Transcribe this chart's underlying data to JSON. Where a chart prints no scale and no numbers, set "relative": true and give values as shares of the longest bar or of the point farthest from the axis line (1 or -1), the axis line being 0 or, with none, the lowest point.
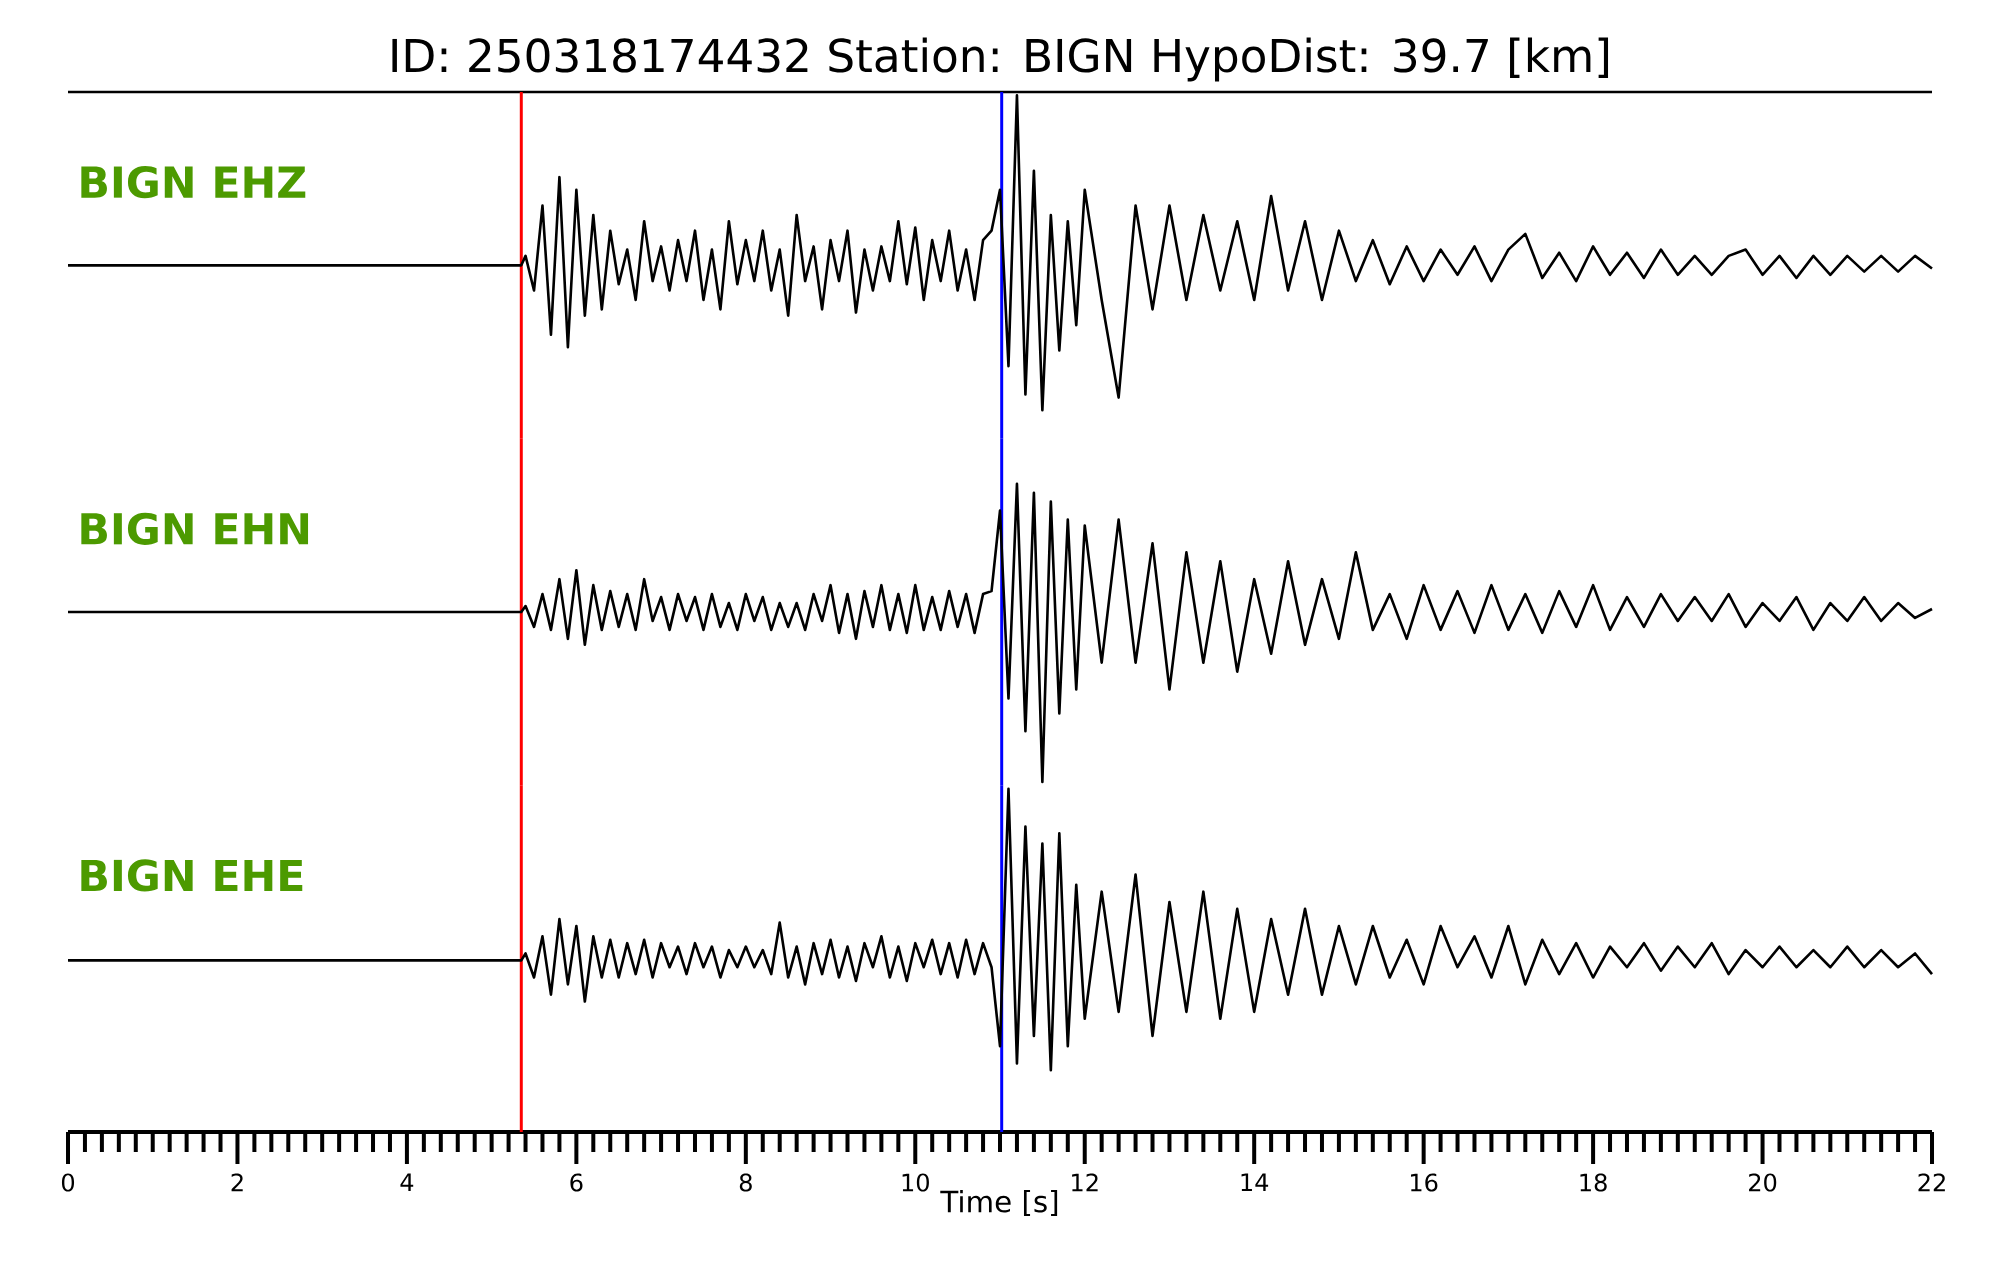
{
  "chart_data": [
    {
      "type": "line",
      "title": "ID: 250318174432   Station: BIGN   HypoDist:    39.7 [km]",
      "relative": true,
      "tick_labels": false,
      "xlim": [
        0,
        22
      ],
      "x": [
        0,
        5.35,
        5.4,
        5.5,
        5.6,
        5.7,
        5.8,
        5.9,
        6.0,
        6.1,
        6.2,
        6.3,
        6.4,
        6.5,
        6.6,
        6.7,
        6.8,
        6.9,
        7.0,
        7.1,
        7.2,
        7.3,
        7.4,
        7.5,
        7.6,
        7.7,
        7.8,
        7.9,
        8.0,
        8.1,
        8.2,
        8.3,
        8.4,
        8.5,
        8.6,
        8.7,
        8.8,
        8.9,
        9.0,
        9.1,
        9.2,
        9.3,
        9.4,
        9.5,
        9.6,
        9.7,
        9.8,
        9.9,
        10.0,
        10.1,
        10.2,
        10.3,
        10.4,
        10.5,
        10.6,
        10.7,
        10.8,
        10.9,
        11.0,
        11.1,
        11.2,
        11.3,
        11.4,
        11.5,
        11.6,
        11.7,
        11.8,
        11.9,
        12.0,
        12.2,
        12.4,
        12.6,
        12.8,
        13.0,
        13.2,
        13.4,
        13.6,
        13.8,
        14.0,
        14.2,
        14.4,
        14.6,
        14.8,
        15.0,
        15.2,
        15.4,
        15.6,
        15.8,
        16.0,
        16.2,
        16.4,
        16.6,
        16.8,
        17.0,
        17.2,
        17.4,
        17.6,
        17.8,
        18.0,
        18.2,
        18.4,
        18.6,
        18.8,
        19.0,
        19.2,
        19.4,
        19.6,
        19.8,
        20.0,
        20.2,
        20.4,
        20.6,
        20.8,
        21.0,
        21.2,
        21.4,
        21.6,
        21.8,
        22.0
      ],
      "series": [
        {
          "name": "BIGN EHZ",
          "color": "#000000",
          "values": [
            0.46,
            0.46,
            0.49,
            0.38,
            0.65,
            0.24,
            0.74,
            0.2,
            0.7,
            0.3,
            0.62,
            0.32,
            0.57,
            0.4,
            0.51,
            0.35,
            0.6,
            0.41,
            0.52,
            0.38,
            0.54,
            0.41,
            0.57,
            0.35,
            0.51,
            0.32,
            0.6,
            0.4,
            0.54,
            0.41,
            0.57,
            0.38,
            0.51,
            0.3,
            0.62,
            0.41,
            0.52,
            0.32,
            0.54,
            0.41,
            0.57,
            0.31,
            0.51,
            0.38,
            0.52,
            0.41,
            0.6,
            0.4,
            0.58,
            0.35,
            0.54,
            0.41,
            0.57,
            0.38,
            0.51,
            0.35,
            0.54,
            0.57,
            0.7,
            0.14,
            1.0,
            0.05,
            0.76,
            0,
            0.62,
            0.19,
            0.6,
            0.27,
            0.7,
            0.35,
            0.04,
            0.65,
            0.32,
            0.65,
            0.35,
            0.62,
            0.38,
            0.6,
            0.35,
            0.68,
            0.38,
            0.6,
            0.35,
            0.57,
            0.41,
            0.54,
            0.4,
            0.52,
            0.41,
            0.51,
            0.43,
            0.52,
            0.41,
            0.51,
            0.56,
            0.42,
            0.5,
            0.41,
            0.52,
            0.43,
            0.5,
            0.42,
            0.51,
            0.43,
            0.49,
            0.43,
            0.49,
            0.51,
            0.43,
            0.49,
            0.42,
            0.49,
            0.43,
            0.49,
            0.44,
            0.49,
            0.44,
            0.49,
            0.45
          ]
        }
      ],
      "ref_lines": [
        {
          "axis": "x",
          "value": 5.35,
          "color": "#ff0000"
        },
        {
          "axis": "x",
          "value": 11.02,
          "color": "#0000ff"
        }
      ]
    },
    {
      "type": "line",
      "relative": true,
      "tick_labels": false,
      "xlim": [
        0,
        22
      ],
      "x": [
        0,
        5.35,
        5.4,
        5.5,
        5.6,
        5.7,
        5.8,
        5.9,
        6.0,
        6.1,
        6.2,
        6.3,
        6.4,
        6.5,
        6.6,
        6.7,
        6.8,
        6.9,
        7.0,
        7.1,
        7.2,
        7.3,
        7.4,
        7.5,
        7.6,
        7.7,
        7.8,
        7.9,
        8.0,
        8.1,
        8.2,
        8.3,
        8.4,
        8.5,
        8.6,
        8.7,
        8.8,
        8.9,
        9.0,
        9.1,
        9.2,
        9.3,
        9.4,
        9.5,
        9.6,
        9.7,
        9.8,
        9.9,
        10.0,
        10.1,
        10.2,
        10.3,
        10.4,
        10.5,
        10.6,
        10.7,
        10.8,
        10.9,
        11.0,
        11.1,
        11.2,
        11.3,
        11.4,
        11.5,
        11.6,
        11.7,
        11.8,
        11.9,
        12.0,
        12.2,
        12.4,
        12.6,
        12.8,
        13.0,
        13.2,
        13.4,
        13.6,
        13.8,
        14.0,
        14.2,
        14.4,
        14.6,
        14.8,
        15.0,
        15.2,
        15.4,
        15.6,
        15.8,
        16.0,
        16.2,
        16.4,
        16.6,
        16.8,
        17.0,
        17.2,
        17.4,
        17.6,
        17.8,
        18.0,
        18.2,
        18.4,
        18.6,
        18.8,
        19.0,
        19.2,
        19.4,
        19.6,
        19.8,
        20.0,
        20.2,
        20.4,
        20.6,
        20.8,
        21.0,
        21.2,
        21.4,
        21.6,
        21.8,
        22.0
      ],
      "series": [
        {
          "name": "BIGN EHN",
          "color": "#000000",
          "values": [
            0.57,
            0.57,
            0.59,
            0.52,
            0.63,
            0.51,
            0.68,
            0.48,
            0.71,
            0.46,
            0.66,
            0.51,
            0.64,
            0.52,
            0.63,
            0.51,
            0.68,
            0.54,
            0.62,
            0.51,
            0.63,
            0.54,
            0.62,
            0.51,
            0.63,
            0.52,
            0.6,
            0.51,
            0.63,
            0.54,
            0.62,
            0.51,
            0.6,
            0.52,
            0.6,
            0.51,
            0.63,
            0.54,
            0.66,
            0.5,
            0.63,
            0.48,
            0.64,
            0.52,
            0.66,
            0.51,
            0.63,
            0.5,
            0.66,
            0.51,
            0.62,
            0.51,
            0.64,
            0.52,
            0.63,
            0.5,
            0.63,
            0.64,
            0.91,
            0.28,
            1.0,
            0.17,
            0.97,
            0,
            0.94,
            0.23,
            0.88,
            0.31,
            0.86,
            0.4,
            0.88,
            0.4,
            0.8,
            0.31,
            0.77,
            0.4,
            0.74,
            0.37,
            0.68,
            0.43,
            0.74,
            0.46,
            0.68,
            0.48,
            0.77,
            0.51,
            0.63,
            0.48,
            0.66,
            0.51,
            0.64,
            0.5,
            0.66,
            0.51,
            0.63,
            0.5,
            0.64,
            0.52,
            0.66,
            0.51,
            0.62,
            0.52,
            0.63,
            0.54,
            0.62,
            0.54,
            0.63,
            0.52,
            0.6,
            0.54,
            0.62,
            0.51,
            0.6,
            0.54,
            0.62,
            0.54,
            0.6,
            0.55,
            0.58
          ]
        }
      ],
      "ref_lines": [
        {
          "axis": "x",
          "value": 5.35,
          "color": "#ff0000"
        },
        {
          "axis": "x",
          "value": 11.02,
          "color": "#0000ff"
        }
      ]
    },
    {
      "type": "line",
      "relative": true,
      "tick_labels": "x",
      "xlim": [
        0,
        22
      ],
      "xticks": [
        0,
        2,
        4,
        6,
        8,
        10,
        12,
        14,
        16,
        18,
        20,
        22
      ],
      "xlabel": "Time [s]",
      "x": [
        0,
        5.35,
        5.4,
        5.5,
        5.6,
        5.7,
        5.8,
        5.9,
        6.0,
        6.1,
        6.2,
        6.3,
        6.4,
        6.5,
        6.6,
        6.7,
        6.8,
        6.9,
        7.0,
        7.1,
        7.2,
        7.3,
        7.4,
        7.5,
        7.6,
        7.7,
        7.8,
        7.9,
        8.0,
        8.1,
        8.2,
        8.3,
        8.4,
        8.5,
        8.6,
        8.7,
        8.8,
        8.9,
        9.0,
        9.1,
        9.2,
        9.3,
        9.4,
        9.5,
        9.6,
        9.7,
        9.8,
        9.9,
        10.0,
        10.1,
        10.2,
        10.3,
        10.4,
        10.5,
        10.6,
        10.7,
        10.8,
        10.9,
        11.0,
        11.1,
        11.2,
        11.3,
        11.4,
        11.5,
        11.6,
        11.7,
        11.8,
        11.9,
        12.0,
        12.2,
        12.4,
        12.6,
        12.8,
        13.0,
        13.2,
        13.4,
        13.6,
        13.8,
        14.0,
        14.2,
        14.4,
        14.6,
        14.8,
        15.0,
        15.2,
        15.4,
        15.6,
        15.8,
        16.0,
        16.2,
        16.4,
        16.6,
        16.8,
        17.0,
        17.2,
        17.4,
        17.6,
        17.8,
        18.0,
        18.2,
        18.4,
        18.6,
        18.8,
        19.0,
        19.2,
        19.4,
        19.6,
        19.8,
        20.0,
        20.2,
        20.4,
        20.6,
        20.8,
        21.0,
        21.2,
        21.4,
        21.6,
        21.8,
        22.0
      ],
      "series": [
        {
          "name": "BIGN EHE",
          "color": "#000000",
          "values": [
            0.5,
            0.5,
            0.52,
            0.45,
            0.57,
            0.4,
            0.62,
            0.43,
            0.6,
            0.38,
            0.57,
            0.45,
            0.56,
            0.45,
            0.55,
            0.46,
            0.56,
            0.45,
            0.55,
            0.48,
            0.54,
            0.46,
            0.55,
            0.48,
            0.54,
            0.45,
            0.53,
            0.48,
            0.54,
            0.48,
            0.53,
            0.46,
            0.61,
            0.45,
            0.54,
            0.43,
            0.55,
            0.46,
            0.56,
            0.45,
            0.54,
            0.44,
            0.55,
            0.48,
            0.57,
            0.45,
            0.54,
            0.44,
            0.55,
            0.48,
            0.56,
            0.46,
            0.55,
            0.45,
            0.56,
            0.46,
            0.55,
            0.48,
            0.25,
            1.0,
            0.2,
            0.89,
            0.28,
            0.84,
            0.18,
            0.87,
            0.25,
            0.72,
            0.33,
            0.7,
            0.35,
            0.75,
            0.28,
            0.67,
            0.35,
            0.7,
            0.33,
            0.65,
            0.35,
            0.62,
            0.4,
            0.65,
            0.4,
            0.6,
            0.43,
            0.6,
            0.45,
            0.56,
            0.43,
            0.6,
            0.48,
            0.57,
            0.45,
            0.6,
            0.43,
            0.56,
            0.46,
            0.55,
            0.45,
            0.54,
            0.48,
            0.55,
            0.47,
            0.54,
            0.48,
            0.55,
            0.46,
            0.53,
            0.48,
            0.54,
            0.48,
            0.53,
            0.48,
            0.54,
            0.48,
            0.53,
            0.48,
            0.52,
            0.46
          ]
        }
      ],
      "ref_lines": [
        {
          "axis": "x",
          "value": 5.35,
          "color": "#ff0000"
        },
        {
          "axis": "x",
          "value": 11.02,
          "color": "#0000ff"
        }
      ]
    }
  ]
}
